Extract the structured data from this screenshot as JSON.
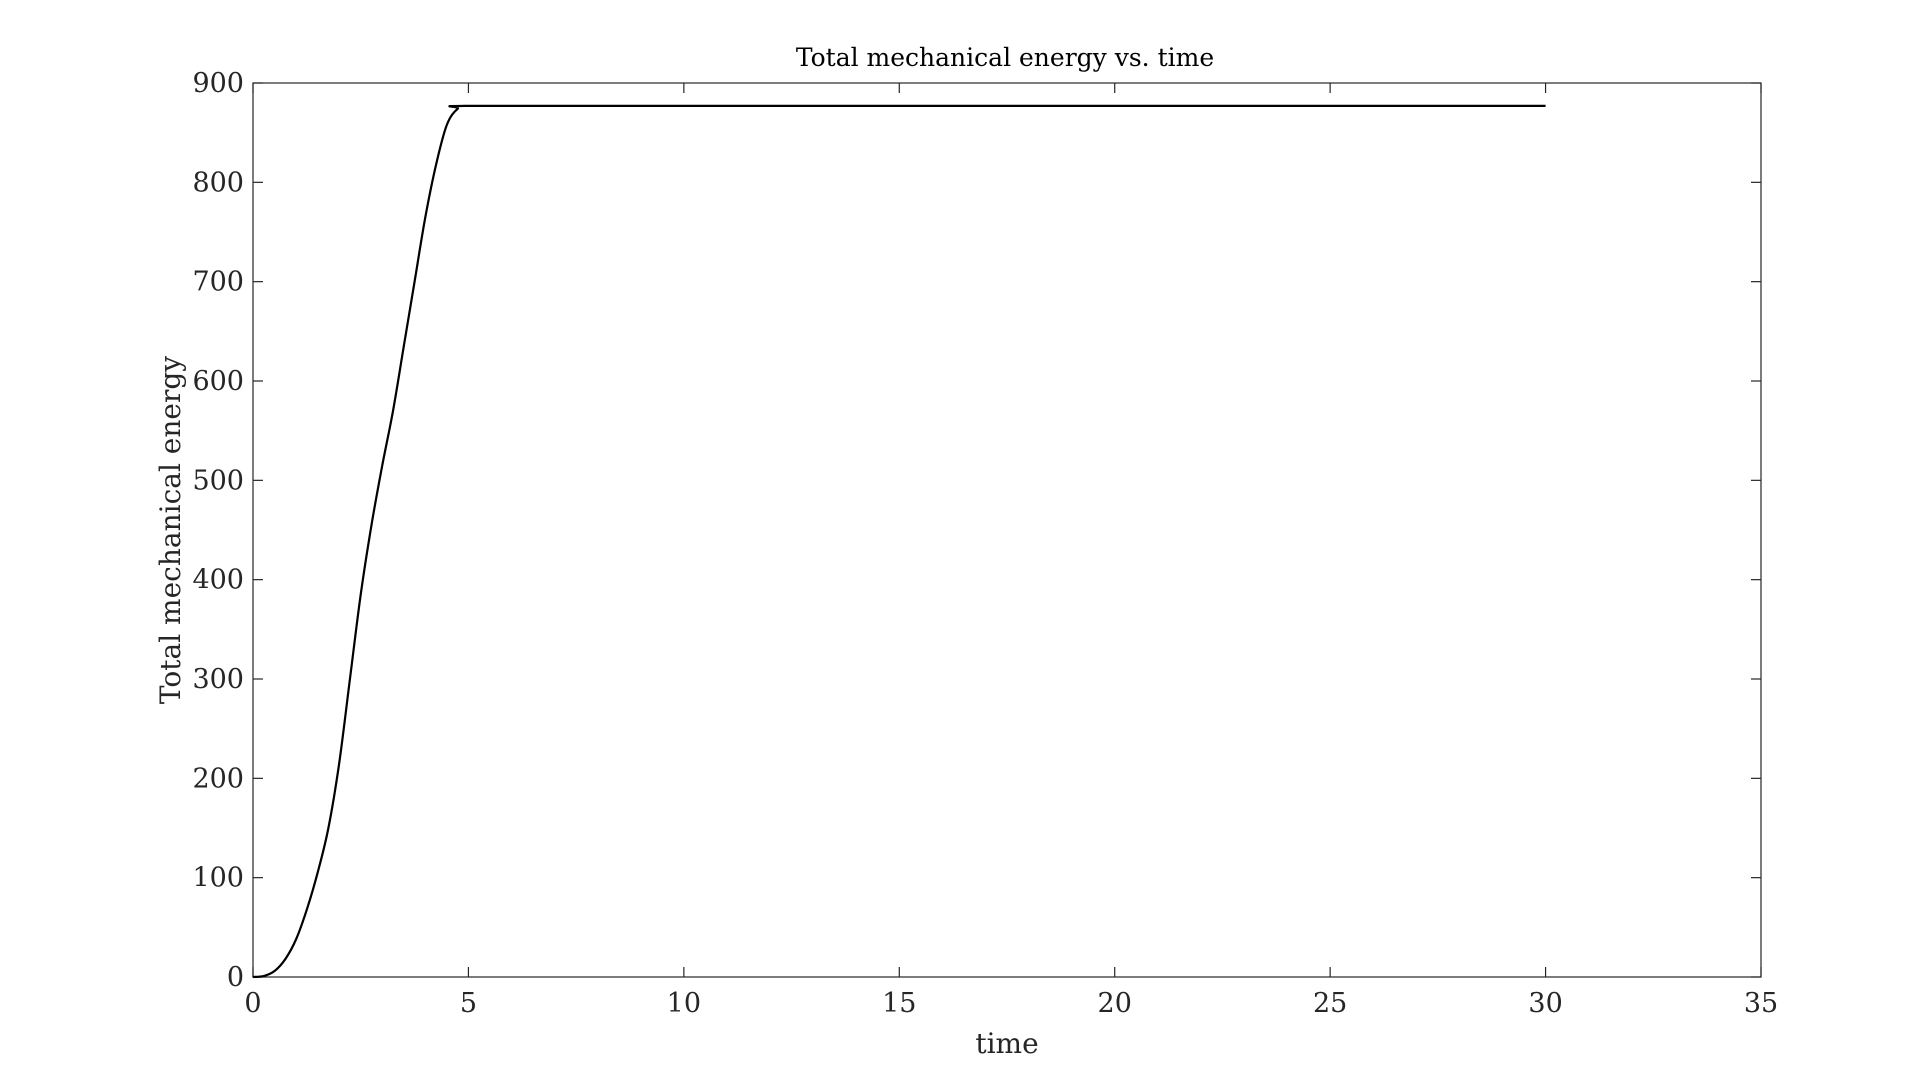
{
  "chart_data": {
    "type": "line",
    "title": "Total mechanical energy vs. time",
    "xlabel": "time",
    "ylabel": "Total mechanical energy",
    "xlim": [
      0,
      35
    ],
    "ylim": [
      0,
      900
    ],
    "xticks": [
      0,
      5,
      10,
      15,
      20,
      25,
      30,
      35
    ],
    "yticks": [
      0,
      100,
      200,
      300,
      400,
      500,
      600,
      700,
      800,
      900
    ],
    "xtick_labels": [
      "0",
      "5",
      "10",
      "15",
      "20",
      "25",
      "30",
      "35"
    ],
    "ytick_labels": [
      "0",
      "100",
      "200",
      "300",
      "400",
      "500",
      "600",
      "700",
      "800",
      "900"
    ],
    "grid": false,
    "legend": false,
    "series": [
      {
        "color": "#000000",
        "x": [
          0,
          0.25,
          0.5,
          0.75,
          1.0,
          1.25,
          1.5,
          1.75,
          2.0,
          2.25,
          2.5,
          2.75,
          3.0,
          3.25,
          3.5,
          3.75,
          4.0,
          4.25,
          4.5,
          4.75,
          5.0,
          10,
          15,
          20,
          25,
          30
        ],
        "y": [
          0,
          1,
          6,
          18,
          38,
          68,
          105,
          150,
          215,
          300,
          385,
          455,
          515,
          570,
          635,
          700,
          765,
          818,
          858,
          874,
          877,
          877,
          877,
          877,
          877,
          877
        ]
      }
    ]
  }
}
